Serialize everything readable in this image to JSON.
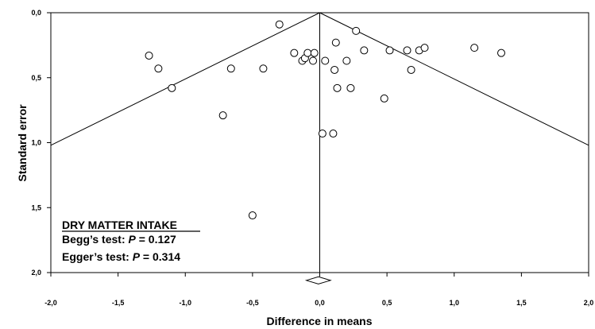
{
  "chart_data": {
    "type": "scatter",
    "xlabel": "Difference in means",
    "ylabel": "Standard error",
    "xlim": [
      -2.0,
      2.0
    ],
    "ylim": [
      0.0,
      2.0
    ],
    "y_inverted": true,
    "grid": false,
    "x_ticks": [
      {
        "value": -2.0,
        "label": "-2,0"
      },
      {
        "value": -1.5,
        "label": "-1,5"
      },
      {
        "value": -1.0,
        "label": "-1,0"
      },
      {
        "value": -0.5,
        "label": "-0,5"
      },
      {
        "value": 0.0,
        "label": "0,0"
      },
      {
        "value": 0.5,
        "label": "0,5"
      },
      {
        "value": 1.0,
        "label": "1,0"
      },
      {
        "value": 1.5,
        "label": "1,5"
      },
      {
        "value": 2.0,
        "label": "2,0"
      }
    ],
    "y_ticks": [
      {
        "value": 0.0,
        "label": "0,0"
      },
      {
        "value": 0.5,
        "label": "0,5"
      },
      {
        "value": 1.0,
        "label": "1,0"
      },
      {
        "value": 1.5,
        "label": "1,5"
      },
      {
        "value": 2.0,
        "label": "2,0"
      }
    ],
    "funnel": {
      "center": 0.0,
      "z": 1.96
    },
    "summary_diamond": {
      "estimate": -0.01,
      "ci": [
        -0.1,
        0.08
      ],
      "se": 2.06
    },
    "points": [
      {
        "x": -1.27,
        "y": 0.33
      },
      {
        "x": -1.2,
        "y": 0.43
      },
      {
        "x": -1.1,
        "y": 0.58
      },
      {
        "x": -0.72,
        "y": 0.79
      },
      {
        "x": -0.66,
        "y": 0.43
      },
      {
        "x": -0.5,
        "y": 1.56
      },
      {
        "x": -0.42,
        "y": 0.43
      },
      {
        "x": -0.3,
        "y": 0.09
      },
      {
        "x": -0.19,
        "y": 0.31
      },
      {
        "x": -0.13,
        "y": 0.37
      },
      {
        "x": -0.11,
        "y": 0.35
      },
      {
        "x": -0.09,
        "y": 0.31
      },
      {
        "x": -0.05,
        "y": 0.37
      },
      {
        "x": -0.04,
        "y": 0.31
      },
      {
        "x": 0.02,
        "y": 0.93
      },
      {
        "x": 0.04,
        "y": 0.37
      },
      {
        "x": 0.1,
        "y": 0.93
      },
      {
        "x": 0.11,
        "y": 0.44
      },
      {
        "x": 0.12,
        "y": 0.23
      },
      {
        "x": 0.13,
        "y": 0.58
      },
      {
        "x": 0.2,
        "y": 0.37
      },
      {
        "x": 0.23,
        "y": 0.58
      },
      {
        "x": 0.27,
        "y": 0.14
      },
      {
        "x": 0.33,
        "y": 0.29
      },
      {
        "x": 0.48,
        "y": 0.66
      },
      {
        "x": 0.52,
        "y": 0.29
      },
      {
        "x": 0.65,
        "y": 0.29
      },
      {
        "x": 0.68,
        "y": 0.44
      },
      {
        "x": 0.74,
        "y": 0.29
      },
      {
        "x": 0.78,
        "y": 0.27
      },
      {
        "x": 1.15,
        "y": 0.27
      },
      {
        "x": 1.35,
        "y": 0.31
      }
    ],
    "annotations": {
      "heading": "DRY MATTER INTAKE",
      "begg_prefix": "Begg’s test: ",
      "begg_p": "P",
      "begg_value": " = 0.127",
      "egger_prefix": "Egger’s test: ",
      "egger_p": "P",
      "egger_value": " = 0.314"
    }
  }
}
